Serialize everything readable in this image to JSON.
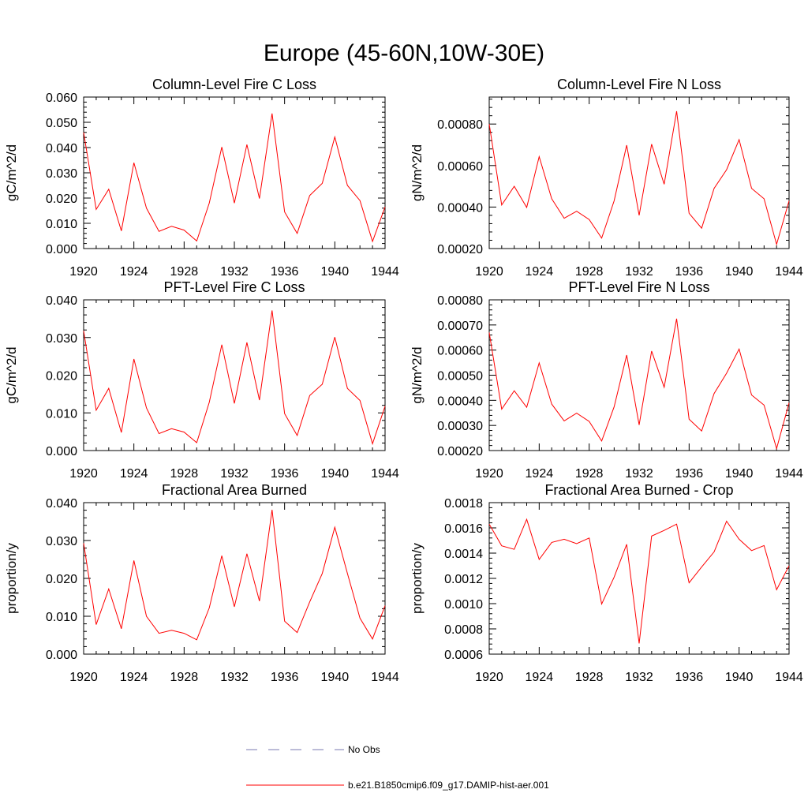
{
  "figure": {
    "title": "Europe (45-60N,10W-30E)",
    "line_color": "#ff0000",
    "obs_color": "#7a7ab0"
  },
  "legend": {
    "entries": [
      {
        "label": "No Obs",
        "style": "dashed",
        "color": "#7a7ab0"
      },
      {
        "label": "b.e21.B1850cmip6.f09_g17.DAMIP-hist-aer.001",
        "style": "solid",
        "color": "#ff0000"
      }
    ]
  },
  "chart_data": [
    {
      "type": "line",
      "title": "Column-Level Fire C Loss",
      "ylabel": "gC/m^2/d",
      "xlim": [
        1920,
        1944
      ],
      "ylim": [
        0.0,
        0.06
      ],
      "xticks": [
        1920,
        1924,
        1928,
        1932,
        1936,
        1940,
        1944
      ],
      "yticks": [
        "0.000",
        "0.010",
        "0.020",
        "0.030",
        "0.040",
        "0.050",
        "0.060"
      ],
      "x": [
        1920,
        1921,
        1922,
        1923,
        1924,
        1925,
        1926,
        1927,
        1928,
        1929,
        1930,
        1931,
        1932,
        1933,
        1934,
        1935,
        1936,
        1937,
        1938,
        1939,
        1940,
        1941,
        1942,
        1943,
        1944
      ],
      "series": [
        {
          "values": [
            0.046,
            0.0155,
            0.0235,
            0.007,
            0.034,
            0.016,
            0.0068,
            0.0088,
            0.0073,
            0.003,
            0.018,
            0.0402,
            0.018,
            0.0412,
            0.0198,
            0.0535,
            0.0145,
            0.006,
            0.021,
            0.0258,
            0.0442,
            0.025,
            0.019,
            0.0028,
            0.0165
          ]
        }
      ]
    },
    {
      "type": "line",
      "title": "Column-Level Fire N Loss",
      "ylabel": "gN/m^2/d",
      "xlim": [
        1920,
        1944
      ],
      "ylim": [
        0.0002,
        0.00093
      ],
      "xticks": [
        1920,
        1924,
        1928,
        1932,
        1936,
        1940,
        1944
      ],
      "yticks": [
        "0.00020",
        "0.00040",
        "0.00060",
        "0.00080"
      ],
      "x": [
        1920,
        1921,
        1922,
        1923,
        1924,
        1925,
        1926,
        1927,
        1928,
        1929,
        1930,
        1931,
        1932,
        1933,
        1934,
        1935,
        1936,
        1937,
        1938,
        1939,
        1940,
        1941,
        1942,
        1943,
        1944
      ],
      "series": [
        {
          "values": [
            0.0008,
            0.00041,
            0.0005,
            0.000398,
            0.000643,
            0.00044,
            0.000346,
            0.00038,
            0.00034,
            0.00025,
            0.00043,
            0.000698,
            0.00036,
            0.000703,
            0.00051,
            0.000862,
            0.00037,
            0.000298,
            0.00049,
            0.00058,
            0.000725,
            0.00049,
            0.00044,
            0.00022,
            0.00043
          ]
        }
      ]
    },
    {
      "type": "line",
      "title": "PFT-Level Fire C Loss",
      "ylabel": "gC/m^2/d",
      "xlim": [
        1920,
        1944
      ],
      "ylim": [
        0.0,
        0.04
      ],
      "xticks": [
        1920,
        1924,
        1928,
        1932,
        1936,
        1940,
        1944
      ],
      "yticks": [
        "0.000",
        "0.010",
        "0.020",
        "0.030",
        "0.040"
      ],
      "x": [
        1920,
        1921,
        1922,
        1923,
        1924,
        1925,
        1926,
        1927,
        1928,
        1929,
        1930,
        1931,
        1932,
        1933,
        1934,
        1935,
        1936,
        1937,
        1938,
        1939,
        1940,
        1941,
        1942,
        1943,
        1944
      ],
      "series": [
        {
          "values": [
            0.0318,
            0.0107,
            0.0165,
            0.0048,
            0.0243,
            0.0113,
            0.0045,
            0.0058,
            0.0049,
            0.0021,
            0.0128,
            0.0281,
            0.0125,
            0.0287,
            0.0134,
            0.0372,
            0.0098,
            0.004,
            0.0146,
            0.0176,
            0.0301,
            0.0165,
            0.0133,
            0.0018,
            0.0118
          ]
        }
      ]
    },
    {
      "type": "line",
      "title": "PFT-Level Fire N Loss",
      "ylabel": "gN/m^2/d",
      "xlim": [
        1920,
        1944
      ],
      "ylim": [
        0.0002,
        0.0008
      ],
      "xticks": [
        1920,
        1924,
        1928,
        1932,
        1936,
        1940,
        1944
      ],
      "yticks": [
        "0.00020",
        "0.00030",
        "0.00040",
        "0.00050",
        "0.00060",
        "0.00070",
        "0.00080"
      ],
      "x": [
        1920,
        1921,
        1922,
        1923,
        1924,
        1925,
        1926,
        1927,
        1928,
        1929,
        1930,
        1931,
        1932,
        1933,
        1934,
        1935,
        1936,
        1937,
        1938,
        1939,
        1940,
        1941,
        1942,
        1943,
        1944
      ],
      "series": [
        {
          "values": [
            0.00067,
            0.000365,
            0.000438,
            0.000372,
            0.000549,
            0.000385,
            0.000318,
            0.000349,
            0.000316,
            0.000238,
            0.000374,
            0.00058,
            0.000302,
            0.000596,
            0.000452,
            0.000725,
            0.000325,
            0.000278,
            0.000427,
            0.000508,
            0.000604,
            0.000421,
            0.000381,
            0.000208,
            0.00039
          ]
        }
      ]
    },
    {
      "type": "line",
      "title": "Fractional Area Burned",
      "ylabel": "proportion/y",
      "xlim": [
        1920,
        1944
      ],
      "ylim": [
        0.0,
        0.04
      ],
      "xticks": [
        1920,
        1924,
        1928,
        1932,
        1936,
        1940,
        1944
      ],
      "yticks": [
        "0.000",
        "0.010",
        "0.020",
        "0.030",
        "0.040"
      ],
      "x": [
        1920,
        1921,
        1922,
        1923,
        1924,
        1925,
        1926,
        1927,
        1928,
        1929,
        1930,
        1931,
        1932,
        1933,
        1934,
        1935,
        1936,
        1937,
        1938,
        1939,
        1940,
        1941,
        1942,
        1943,
        1944
      ],
      "series": [
        {
          "values": [
            0.0293,
            0.0078,
            0.0172,
            0.0067,
            0.0247,
            0.01,
            0.0055,
            0.0063,
            0.0055,
            0.0038,
            0.0122,
            0.026,
            0.0125,
            0.0265,
            0.014,
            0.0381,
            0.0087,
            0.0057,
            0.0138,
            0.0213,
            0.0335,
            0.0213,
            0.0095,
            0.004,
            0.0128
          ]
        }
      ]
    },
    {
      "type": "line",
      "title": "Fractional Area Burned - Crop",
      "ylabel": "proportion/y",
      "xlim": [
        1920,
        1944
      ],
      "ylim": [
        0.0006,
        0.0018
      ],
      "xticks": [
        1920,
        1924,
        1928,
        1932,
        1936,
        1940,
        1944
      ],
      "yticks": [
        "0.0006",
        "0.0008",
        "0.0010",
        "0.0012",
        "0.0014",
        "0.0016",
        "0.0018"
      ],
      "x": [
        1920,
        1921,
        1922,
        1923,
        1924,
        1925,
        1926,
        1927,
        1928,
        1929,
        1930,
        1931,
        1932,
        1933,
        1934,
        1935,
        1936,
        1937,
        1938,
        1939,
        1940,
        1941,
        1942,
        1943,
        1944
      ],
      "series": [
        {
          "values": [
            0.00163,
            0.001458,
            0.00143,
            0.001668,
            0.00135,
            0.001485,
            0.00151,
            0.001475,
            0.00152,
            0.000997,
            0.00121,
            0.00147,
            0.000685,
            0.001535,
            0.00158,
            0.00163,
            0.001165,
            0.00129,
            0.00141,
            0.001653,
            0.00151,
            0.00142,
            0.00146,
            0.00111,
            0.0013
          ]
        }
      ]
    }
  ]
}
